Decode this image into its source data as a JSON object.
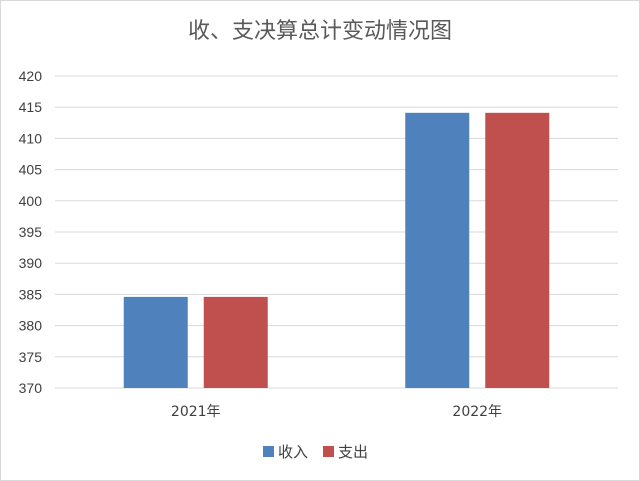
{
  "chart_data": {
    "type": "bar",
    "title": "收、支决算总计变动情况图",
    "categories": [
      "2021年",
      "2022年"
    ],
    "series": [
      {
        "name": "收入",
        "values": [
          384.6,
          414.1
        ],
        "color": "#4f81bd"
      },
      {
        "name": "支出",
        "values": [
          384.6,
          414.1
        ],
        "color": "#c0504d"
      }
    ],
    "ylim": [
      370,
      420
    ],
    "yticks": [
      370,
      375,
      380,
      385,
      390,
      395,
      400,
      405,
      410,
      415,
      420
    ],
    "grid": true,
    "legend": "bottom",
    "xlabel": "",
    "ylabel": ""
  }
}
